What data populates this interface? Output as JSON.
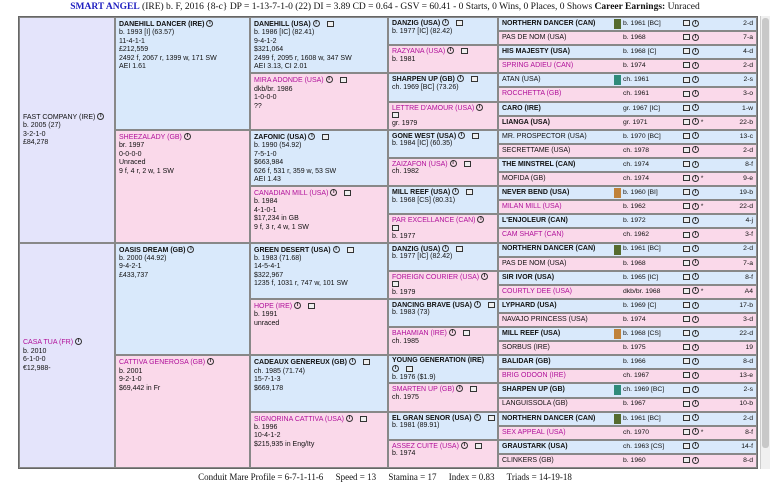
{
  "header": {
    "horse_name": "SMART ANGEL",
    "details": "(IRE) b. F, 2016 {8-c} DP = 1-13-7-1-0 (22) DI = 3.89  CD = 0.64 - GSV = 60.41 - 0 Starts, 0 Wins, 0 Places, 0 Shows",
    "earnings_label": "Career Earnings:",
    "earnings_value": "Unraced"
  },
  "footer": {
    "profile": "Conduit Mare Profile = 6-7-1-11-6",
    "speed": "Speed = 13",
    "stamina": "Stamina = 17",
    "index": "Index = 0.83",
    "triads": "Triads = 14-19-18"
  },
  "g1": [
    {
      "name": "FAST COMPANY (IRE)",
      "lines": [
        "b. 2005 (27)",
        "3-2-1-0",
        "£84,278"
      ],
      "sex": "male"
    },
    {
      "name": "CASA TUA (FR)",
      "lines": [
        "b. 2010",
        "6-1-0-0",
        "€12,988-"
      ],
      "sex": "female"
    }
  ],
  "g2": [
    {
      "name": "DANEHILL DANCER (IRE)",
      "lines": [
        "b. 1993 [I] (63.57)",
        "11-4-1-1",
        "£212,559",
        "2492 f, 2067 r, 1399 w, 171 SW",
        "AEI 1.61"
      ],
      "sex": "male"
    },
    {
      "name": "SHEEZALADY (GB)",
      "lines": [
        "br. 1997",
        "0-0-0-0",
        "Unraced",
        "9 f, 4 r, 2 w, 1 SW"
      ],
      "sex": "female"
    },
    {
      "name": "OASIS DREAM (GB)",
      "lines": [
        "b. 2000 (44.92)",
        "9-4-2-1",
        "£433,737"
      ],
      "sex": "male"
    },
    {
      "name": "CATTIVA GENEROSA (GB)",
      "lines": [
        "b. 2001",
        "9-2-1-0",
        "$69,442 in Fr"
      ],
      "sex": "female"
    }
  ],
  "g3": [
    {
      "name": "DANEHILL (USA)",
      "lines": [
        "b. 1986 [IC] (82.41)",
        "9-4-1-2",
        "$321,064",
        "2499 f, 2095 r, 1608 w, 347 SW",
        "AEI 3.13, CI 2.01"
      ],
      "sex": "male"
    },
    {
      "name": "MIRA ADONDE (USA)",
      "lines": [
        "dkb/br. 1986",
        "1-0-0-0",
        "??"
      ],
      "sex": "female"
    },
    {
      "name": "ZAFONIC (USA)",
      "lines": [
        "b. 1990 (54.92)",
        "7-5-1-0",
        "$663,984",
        "626 f, 531 r, 359 w, 53 SW",
        "AEI 1.43"
      ],
      "sex": "male"
    },
    {
      "name": "CANADIAN MILL (USA)",
      "lines": [
        "b. 1984",
        "4-1-0-1",
        "$17,234 in GB",
        "9 f, 3 r, 4 w, 1 SW"
      ],
      "sex": "female"
    },
    {
      "name": "GREEN DESERT (USA)",
      "lines": [
        "b. 1983 (71.68)",
        "14-5-4-1",
        "$322,967",
        "1235 f, 1031 r, 747 w, 101 SW"
      ],
      "sex": "male"
    },
    {
      "name": "HOPE (IRE)",
      "lines": [
        "b. 1991",
        "unraced"
      ],
      "sex": "female"
    },
    {
      "name": "CADEAUX GENEREUX (GB)",
      "lines": [
        "ch. 1985 (71.74)",
        "15-7-1-3",
        "$669,178"
      ],
      "sex": "male"
    },
    {
      "name": "SIGNORINA CATTIVA (USA)",
      "lines": [
        "b. 1996",
        "10-4-1-2",
        "$215,935 in Eng/Ity"
      ],
      "sex": "female"
    }
  ],
  "g4": [
    {
      "name": "DANZIG (USA)",
      "lines": [
        "b. 1977 [IC] (82.42)"
      ],
      "sex": "male"
    },
    {
      "name": "RAZYANA (USA)",
      "lines": [
        "b. 1981"
      ],
      "sex": "female"
    },
    {
      "name": "SHARPEN UP (GB)",
      "lines": [
        "ch. 1969 [BC] (73.26)"
      ],
      "sex": "male"
    },
    {
      "name": "LETTRE D'AMOUR (USA)",
      "lines": [
        "gr. 1979"
      ],
      "sex": "female"
    },
    {
      "name": "GONE WEST (USA)",
      "lines": [
        "b. 1984 [IC] (60.35)"
      ],
      "sex": "male"
    },
    {
      "name": "ZAIZAFON (USA)",
      "lines": [
        "ch. 1982"
      ],
      "sex": "female"
    },
    {
      "name": "MILL REEF (USA)",
      "lines": [
        "b. 1968 [CS] (80.31)"
      ],
      "sex": "male"
    },
    {
      "name": "PAR EXCELLANCE (CAN)",
      "lines": [
        "b. 1977"
      ],
      "sex": "female"
    },
    {
      "name": "DANZIG (USA)",
      "lines": [
        "b. 1977 [IC] (82.42)"
      ],
      "sex": "male"
    },
    {
      "name": "FOREIGN COURIER (USA)",
      "lines": [
        "b. 1979"
      ],
      "sex": "female"
    },
    {
      "name": "DANCING BRAVE (USA)",
      "lines": [
        "b. 1983 (73)"
      ],
      "sex": "male"
    },
    {
      "name": "BAHAMIAN (IRE)",
      "lines": [
        "ch. 1985"
      ],
      "sex": "female"
    },
    {
      "name": "YOUNG GENERATION (IRE)",
      "lines": [
        "b. 1976 ($1.9)"
      ],
      "sex": "male"
    },
    {
      "name": "SMARTEN UP (GB)",
      "lines": [
        "ch. 1975"
      ],
      "sex": "female"
    },
    {
      "name": "EL GRAN SENOR (USA)",
      "lines": [
        "b. 1981 (89.91)"
      ],
      "sex": "male"
    },
    {
      "name": "ASSEZ CUITE (USA)",
      "lines": [
        "b. 1974"
      ],
      "sex": "female"
    }
  ],
  "g5": [
    {
      "name": "NORTHERN DANCER (CAN)",
      "yr": "b. 1961 [BC]",
      "code": "2-d",
      "sex": "male",
      "bold": true,
      "sw": "#556b2f"
    },
    {
      "name": "PAS DE NOM (USA)",
      "yr": "b. 1968",
      "code": "7-a",
      "sex": "female",
      "bold": false
    },
    {
      "name": "HIS MAJESTY (USA)",
      "yr": "b. 1968 [C]",
      "code": "4-d",
      "sex": "male",
      "bold": true
    },
    {
      "name": "SPRING ADIEU (CAN)",
      "yr": "b. 1974",
      "code": "2-d",
      "sex": "female",
      "pink": true
    },
    {
      "name": "ATAN (USA)",
      "yr": "ch. 1961",
      "code": "2-s",
      "sex": "male",
      "bold": false,
      "sw": "#2e8b7a"
    },
    {
      "name": "ROCCHETTA (GB)",
      "yr": "ch. 1961",
      "code": "3-o",
      "sex": "female",
      "pink": true
    },
    {
      "name": "CARO (IRE)",
      "yr": "gr. 1967 [IC]",
      "code": "1-w",
      "sex": "male",
      "bold": true
    },
    {
      "name": "LIANGA (USA)",
      "yr": "gr. 1971",
      "code": "22-b",
      "sex": "female",
      "bold": true,
      "star": true
    },
    {
      "name": "MR. PROSPECTOR (USA)",
      "yr": "b. 1970 [BC]",
      "code": "13-c",
      "sex": "male",
      "bold": false
    },
    {
      "name": "SECRETTAME (USA)",
      "yr": "ch. 1978",
      "code": "2-d",
      "sex": "female",
      "bold": false
    },
    {
      "name": "THE MINSTREL (CAN)",
      "yr": "ch. 1974",
      "code": "8-f",
      "sex": "male",
      "bold": true
    },
    {
      "name": "MOFIDA (GB)",
      "yr": "ch. 1974",
      "code": "9-e",
      "sex": "female",
      "bold": false,
      "star": true
    },
    {
      "name": "NEVER BEND (USA)",
      "yr": "b. 1960 [BI]",
      "code": "19-b",
      "sex": "male",
      "bold": true,
      "sw": "#c0823a"
    },
    {
      "name": "MILAN MILL (USA)",
      "yr": "b. 1962",
      "code": "22-d",
      "sex": "female",
      "pink": true,
      "star": true
    },
    {
      "name": "L'ENJOLEUR (CAN)",
      "yr": "b. 1972",
      "code": "4-j",
      "sex": "male",
      "bold": true
    },
    {
      "name": "CAM SHAFT (CAN)",
      "yr": "ch. 1962",
      "code": "3-f",
      "sex": "female",
      "pink": true
    },
    {
      "name": "NORTHERN DANCER (CAN)",
      "yr": "b. 1961 [BC]",
      "code": "2-d",
      "sex": "male",
      "bold": true,
      "sw": "#556b2f"
    },
    {
      "name": "PAS DE NOM (USA)",
      "yr": "b. 1968",
      "code": "7-a",
      "sex": "female",
      "bold": false
    },
    {
      "name": "SIR IVOR (USA)",
      "yr": "b. 1965 [IC]",
      "code": "8-f",
      "sex": "male",
      "bold": true
    },
    {
      "name": "COURTLY DEE (USA)",
      "yr": "dkb/br. 1968",
      "code": "A4",
      "sex": "female",
      "pink": true,
      "star": true
    },
    {
      "name": "LYPHARD (USA)",
      "yr": "b. 1969 [C]",
      "code": "17-b",
      "sex": "male",
      "bold": true
    },
    {
      "name": "NAVAJO PRINCESS (USA)",
      "yr": "b. 1974",
      "code": "3-d",
      "sex": "female",
      "bold": false
    },
    {
      "name": "MILL REEF (USA)",
      "yr": "b. 1968 [CS]",
      "code": "22-d",
      "sex": "male",
      "bold": true,
      "sw": "#c0823a"
    },
    {
      "name": "SORBUS (IRE)",
      "yr": "b. 1975",
      "code": "19",
      "sex": "female",
      "bold": false
    },
    {
      "name": "BALIDAR (GB)",
      "yr": "b. 1966",
      "code": "8-d",
      "sex": "male",
      "bold": true
    },
    {
      "name": "BRIG ODOON (IRE)",
      "yr": "ch. 1967",
      "code": "13-e",
      "sex": "female",
      "pink": true
    },
    {
      "name": "SHARPEN UP (GB)",
      "yr": "ch. 1969 [BC]",
      "code": "2-s",
      "sex": "male",
      "bold": true,
      "sw": "#2e8b7a"
    },
    {
      "name": "LANGUISSOLA (GB)",
      "yr": "b. 1967",
      "code": "10-b",
      "sex": "female",
      "bold": false
    },
    {
      "name": "NORTHERN DANCER (CAN)",
      "yr": "b. 1961 [BC]",
      "code": "2-d",
      "sex": "male",
      "bold": true,
      "sw": "#556b2f"
    },
    {
      "name": "SEX APPEAL (USA)",
      "yr": "ch. 1970",
      "code": "8-f",
      "sex": "female",
      "pink": true,
      "star": true
    },
    {
      "name": "GRAUSTARK (USA)",
      "yr": "ch. 1963 [CS]",
      "code": "14-f",
      "sex": "male",
      "bold": true
    },
    {
      "name": "CLINKERS (GB)",
      "yr": "b. 1960",
      "code": "8-d",
      "sex": "female",
      "bold": false
    }
  ]
}
